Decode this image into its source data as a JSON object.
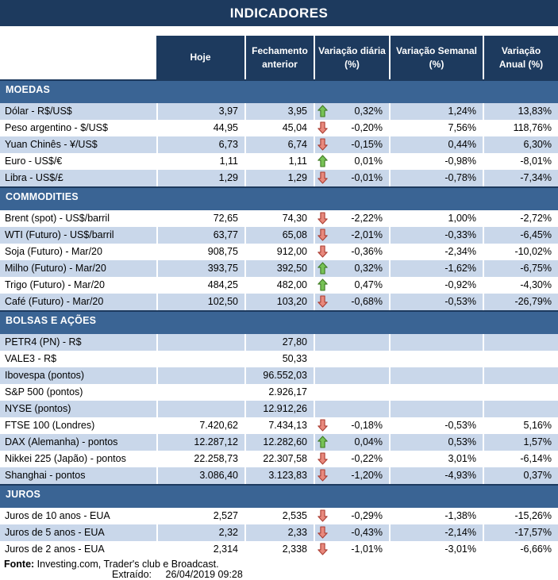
{
  "title": "INDICADORES",
  "colors": {
    "banner": "#1D3A5E",
    "section_bar": "#3A6494",
    "row_alt": "#C9D7EA",
    "arrow_up": "#77C256",
    "arrow_up_border": "#3E7A23",
    "arrow_down": "#E8897D",
    "arrow_down_border": "#AA3C31"
  },
  "table": {
    "columns": [
      {
        "label": "Hoje"
      },
      {
        "label": "Fechamento anterior"
      },
      {
        "label": "Variação diária (%)"
      },
      {
        "label": "Variação Semanal (%)"
      },
      {
        "label": "Variação Anual (%)"
      }
    ],
    "trend_icons": {
      "up": "up-arrow-icon",
      "down": "down-arrow-icon"
    },
    "sections": [
      {
        "title": "MOEDAS",
        "rows": [
          {
            "label": "Dólar - R$/US$",
            "hoje": "3,97",
            "fechamento_anterior": "3,95",
            "trend": "up",
            "variacao_diaria": "0,32%",
            "variacao_semanal": "1,24%",
            "variacao_anual": "13,83%"
          },
          {
            "label": "Peso argentino - $/US$",
            "hoje": "44,95",
            "fechamento_anterior": "45,04",
            "trend": "down",
            "variacao_diaria": "-0,20%",
            "variacao_semanal": "7,56%",
            "variacao_anual": "118,76%"
          },
          {
            "label": "Yuan Chinês - ¥/US$",
            "hoje": "6,73",
            "fechamento_anterior": "6,74",
            "trend": "down",
            "variacao_diaria": "-0,15%",
            "variacao_semanal": "0,44%",
            "variacao_anual": "6,30%"
          },
          {
            "label": "Euro - US$/€",
            "hoje": "1,11",
            "fechamento_anterior": "1,11",
            "trend": "up",
            "variacao_diaria": "0,01%",
            "variacao_semanal": "-0,98%",
            "variacao_anual": "-8,01%"
          },
          {
            "label": "Libra - US$/£",
            "hoje": "1,29",
            "fechamento_anterior": "1,29",
            "trend": "down",
            "variacao_diaria": "-0,01%",
            "variacao_semanal": "-0,78%",
            "variacao_anual": "-7,34%"
          }
        ]
      },
      {
        "title": "COMMODITIES",
        "rows": [
          {
            "label": "Brent (spot) - US$/barril",
            "hoje": "72,65",
            "fechamento_anterior": "74,30",
            "trend": "down",
            "variacao_diaria": "-2,22%",
            "variacao_semanal": "1,00%",
            "variacao_anual": "-2,72%"
          },
          {
            "label": "WTI (Futuro) - US$/barril",
            "hoje": "63,77",
            "fechamento_anterior": "65,08",
            "trend": "down",
            "variacao_diaria": "-2,01%",
            "variacao_semanal": "-0,33%",
            "variacao_anual": "-6,45%"
          },
          {
            "label": "Soja (Futuro) - Mar/20",
            "hoje": "908,75",
            "fechamento_anterior": "912,00",
            "trend": "down",
            "variacao_diaria": "-0,36%",
            "variacao_semanal": "-2,34%",
            "variacao_anual": "-10,02%"
          },
          {
            "label": "Milho (Futuro) - Mar/20",
            "hoje": "393,75",
            "fechamento_anterior": "392,50",
            "trend": "up",
            "variacao_diaria": "0,32%",
            "variacao_semanal": "-1,62%",
            "variacao_anual": "-6,75%"
          },
          {
            "label": "Trigo (Futuro) - Mar/20",
            "hoje": "484,25",
            "fechamento_anterior": "482,00",
            "trend": "up",
            "variacao_diaria": "0,47%",
            "variacao_semanal": "-0,92%",
            "variacao_anual": "-4,30%"
          },
          {
            "label": "Café (Futuro) - Mar/20",
            "hoje": "102,50",
            "fechamento_anterior": "103,20",
            "trend": "down",
            "variacao_diaria": "-0,68%",
            "variacao_semanal": "-0,53%",
            "variacao_anual": "-26,79%"
          }
        ]
      },
      {
        "title": "BOLSAS E AÇÕES",
        "rows": [
          {
            "label": "PETR4 (PN) - R$",
            "hoje": "",
            "fechamento_anterior": "27,80",
            "trend": "",
            "variacao_diaria": "",
            "variacao_semanal": "",
            "variacao_anual": ""
          },
          {
            "label": "VALE3 - R$",
            "hoje": "",
            "fechamento_anterior": "50,33",
            "trend": "",
            "variacao_diaria": "",
            "variacao_semanal": "",
            "variacao_anual": ""
          },
          {
            "label": "Ibovespa (pontos)",
            "hoje": "",
            "fechamento_anterior": "96.552,03",
            "trend": "",
            "variacao_diaria": "",
            "variacao_semanal": "",
            "variacao_anual": ""
          },
          {
            "label": "S&P 500 (pontos)",
            "hoje": "",
            "fechamento_anterior": "2.926,17",
            "trend": "",
            "variacao_diaria": "",
            "variacao_semanal": "",
            "variacao_anual": ""
          },
          {
            "label": "NYSE (pontos)",
            "hoje": "",
            "fechamento_anterior": "12.912,26",
            "trend": "",
            "variacao_diaria": "",
            "variacao_semanal": "",
            "variacao_anual": ""
          },
          {
            "label": "FTSE 100 (Londres)",
            "hoje": "7.420,62",
            "fechamento_anterior": "7.434,13",
            "trend": "down",
            "variacao_diaria": "-0,18%",
            "variacao_semanal": "-0,53%",
            "variacao_anual": "5,16%"
          },
          {
            "label": "DAX (Alemanha) - pontos",
            "hoje": "12.287,12",
            "fechamento_anterior": "12.282,60",
            "trend": "up",
            "variacao_diaria": "0,04%",
            "variacao_semanal": "0,53%",
            "variacao_anual": "1,57%"
          },
          {
            "label": "Nikkei 225 (Japão) - pontos",
            "hoje": "22.258,73",
            "fechamento_anterior": "22.307,58",
            "trend": "down",
            "variacao_diaria": "-0,22%",
            "variacao_semanal": "3,01%",
            "variacao_anual": "-6,14%"
          },
          {
            "label": "Shanghai - pontos",
            "hoje": "3.086,40",
            "fechamento_anterior": "3.123,83",
            "trend": "down",
            "variacao_diaria": "-1,20%",
            "variacao_semanal": "-4,93%",
            "variacao_anual": "0,37%"
          }
        ]
      },
      {
        "title": "JUROS",
        "rows": [
          {
            "label": "Juros de 10 anos - EUA",
            "hoje": "2,527",
            "fechamento_anterior": "2,535",
            "trend": "down",
            "variacao_diaria": "-0,29%",
            "variacao_semanal": "-1,38%",
            "variacao_anual": "-15,26%"
          },
          {
            "label": "Juros de 5 anos - EUA",
            "hoje": "2,32",
            "fechamento_anterior": "2,33",
            "trend": "down",
            "variacao_diaria": "-0,43%",
            "variacao_semanal": "-2,14%",
            "variacao_anual": "-17,57%"
          },
          {
            "label": "Juros de 2 anos - EUA",
            "hoje": "2,314",
            "fechamento_anterior": "2,338",
            "trend": "down",
            "variacao_diaria": "-1,01%",
            "variacao_semanal": "-3,01%",
            "variacao_anual": "-6,66%"
          }
        ]
      }
    ]
  },
  "footer": {
    "fonte_label": "Fonte:",
    "fonte_text": "Investing.com, Trader's club e Broadcast.",
    "extraido_label": "Extraído:",
    "extraido_datetime": "26/04/2019 09:28"
  }
}
